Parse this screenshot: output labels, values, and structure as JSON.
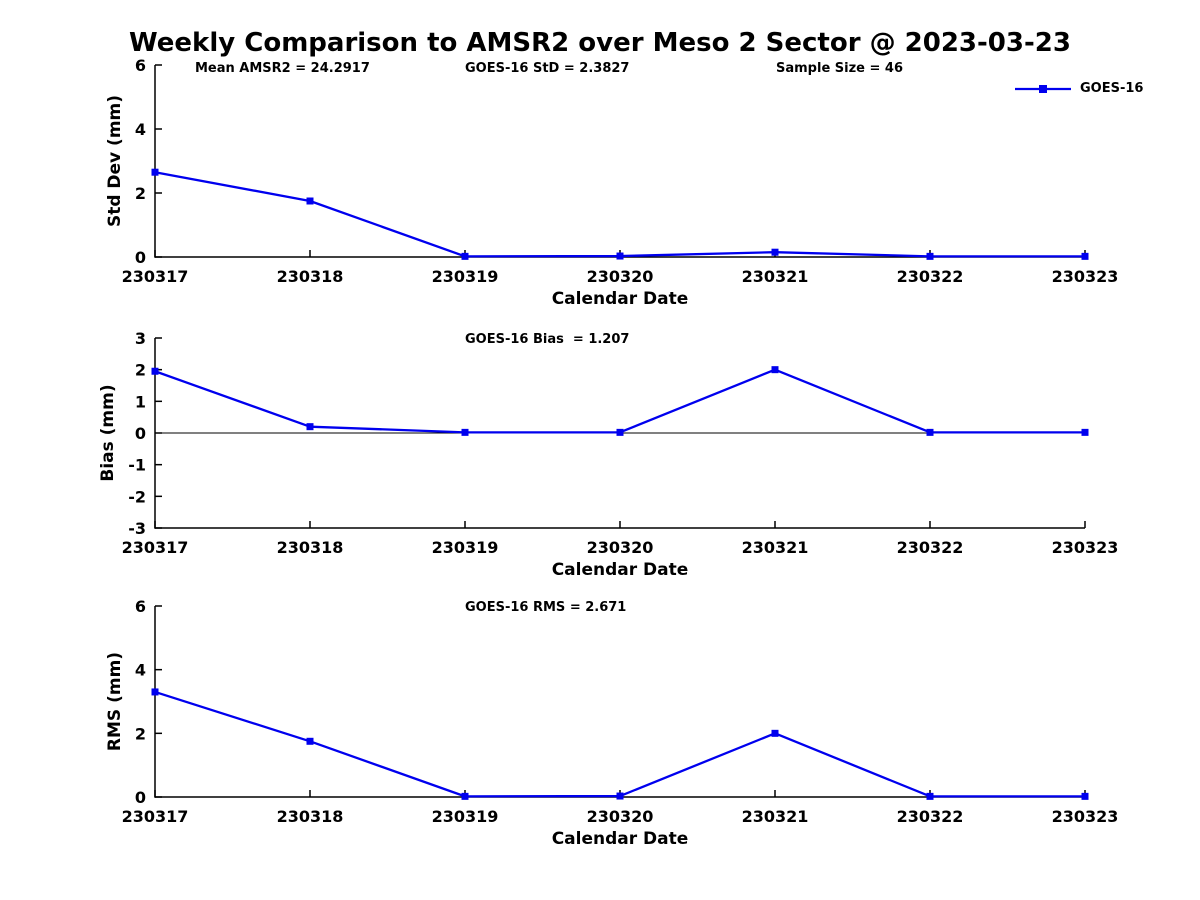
{
  "figure": {
    "title": "Weekly Comparison to AMSR2 over Meso 2 Sector @ 2023-03-23",
    "header_stats": [
      "Mean AMSR2 = 24.2917",
      "GOES-16 StD = 2.3827",
      "Sample Size = 46"
    ],
    "legend": {
      "label": "GOES-16",
      "position": "top-right"
    },
    "colors": {
      "series": "#0000EE",
      "axis": "#000000",
      "text": "#000000",
      "background": "#FFFFFF"
    }
  },
  "chart_data": [
    {
      "type": "line",
      "title": "",
      "ylabel": "Std Dev (mm)",
      "xlabel": "Calendar Date",
      "categories": [
        "230317",
        "230318",
        "230319",
        "230320",
        "230321",
        "230322",
        "230323"
      ],
      "series": [
        {
          "name": "GOES-16",
          "marker": "square",
          "color": "#0000EE",
          "values": [
            2.65,
            1.75,
            0.02,
            0.03,
            0.15,
            0.02,
            0.02
          ]
        }
      ],
      "ylim": [
        0,
        6
      ],
      "yticks": [
        0,
        2,
        4,
        6
      ],
      "grid": false,
      "zero_line": false
    },
    {
      "type": "line",
      "title": "GOES-16 Bias  = 1.207",
      "ylabel": "Bias (mm)",
      "xlabel": "Calendar Date",
      "categories": [
        "230317",
        "230318",
        "230319",
        "230320",
        "230321",
        "230322",
        "230323"
      ],
      "series": [
        {
          "name": "GOES-16",
          "marker": "square",
          "color": "#0000EE",
          "values": [
            1.95,
            0.2,
            0.02,
            0.02,
            2.0,
            0.02,
            0.02
          ]
        }
      ],
      "ylim": [
        -3,
        3
      ],
      "yticks": [
        -3,
        -2,
        -1,
        0,
        1,
        2,
        3
      ],
      "grid": false,
      "zero_line": true
    },
    {
      "type": "line",
      "title": "GOES-16 RMS = 2.671",
      "ylabel": "RMS (mm)",
      "xlabel": "Calendar Date",
      "categories": [
        "230317",
        "230318",
        "230319",
        "230320",
        "230321",
        "230322",
        "230323"
      ],
      "series": [
        {
          "name": "GOES-16",
          "marker": "square",
          "color": "#0000EE",
          "values": [
            3.3,
            1.75,
            0.02,
            0.03,
            2.0,
            0.02,
            0.02
          ]
        }
      ],
      "ylim": [
        0,
        6
      ],
      "yticks": [
        0,
        2,
        4,
        6
      ],
      "grid": false,
      "zero_line": false
    }
  ]
}
